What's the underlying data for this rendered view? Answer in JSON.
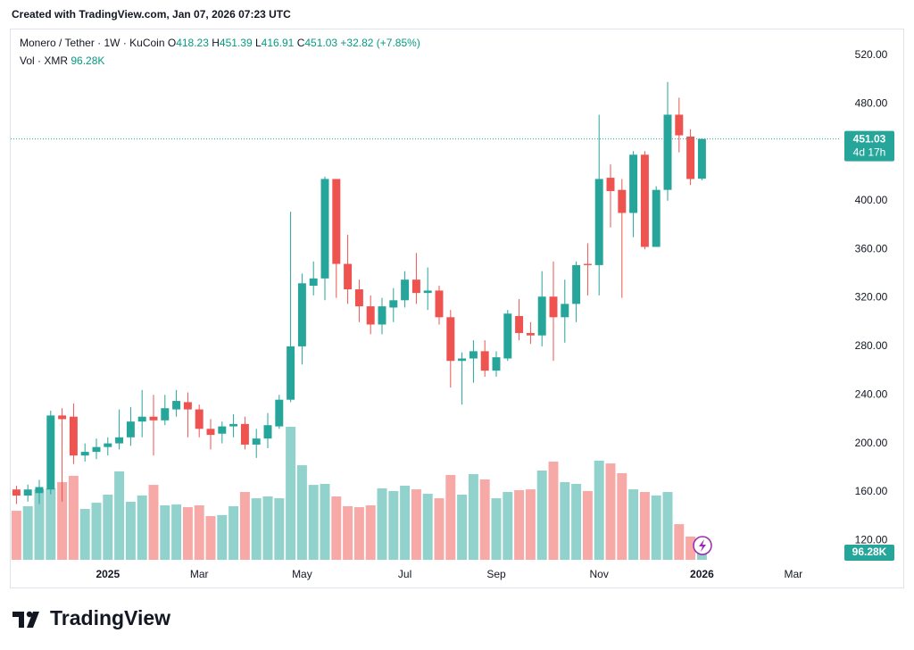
{
  "header": {
    "created": "Created with TradingView.com, Jan 07, 2026 07:23 UTC"
  },
  "chart_data": {
    "type": "candlestick",
    "title": "Monero / Tether · 1W · KuCoin",
    "ohlc_labels": [
      "O",
      "H",
      "L",
      "C"
    ],
    "change": "+32.82 (+7.85%)",
    "volume_title": "Vol · XMR",
    "volume_label": "96.28K",
    "countdown": "4d 17h",
    "open": [
      162,
      157,
      159,
      162,
      223,
      222,
      190,
      193,
      197,
      200,
      205,
      218,
      222,
      219,
      228,
      234,
      228,
      212,
      208,
      214,
      216,
      199,
      204,
      214,
      236,
      280,
      330,
      336,
      418,
      348,
      327,
      313,
      298,
      312,
      318,
      335,
      324,
      326,
      304,
      268,
      270,
      276,
      260,
      270,
      305,
      291,
      289,
      321,
      304,
      315,
      348,
      347,
      419,
      409,
      390,
      438,
      362,
      409,
      471,
      453,
      418.23
    ],
    "high": [
      165,
      166,
      170,
      227,
      229,
      233,
      200,
      204,
      205,
      228,
      230,
      244,
      240,
      240,
      244,
      242,
      232,
      220,
      218,
      224,
      222,
      212,
      225,
      240,
      391,
      340,
      350,
      420,
      418,
      372,
      335,
      322,
      320,
      328,
      342,
      357,
      345,
      330,
      310,
      275,
      285,
      285,
      276,
      310,
      319,
      300,
      342,
      350,
      335,
      350,
      365,
      471,
      430,
      418,
      441,
      441,
      412,
      498,
      485,
      459,
      451.39
    ],
    "low": [
      150,
      152,
      150,
      158,
      152,
      183,
      185,
      187,
      190,
      195,
      198,
      205,
      190,
      215,
      222,
      205,
      205,
      195,
      200,
      205,
      195,
      188,
      196,
      212,
      234,
      265,
      322,
      318,
      320,
      315,
      300,
      290,
      290,
      300,
      312,
      315,
      310,
      298,
      246,
      232,
      250,
      255,
      255,
      268,
      285,
      282,
      280,
      268,
      283,
      300,
      322,
      322,
      378,
      320,
      370,
      360,
      362,
      400,
      440,
      413,
      416.91
    ],
    "close": [
      157,
      162,
      164,
      223,
      220,
      190,
      193,
      197,
      200,
      205,
      218,
      222,
      219,
      229,
      235,
      228,
      212,
      207,
      214,
      216,
      199,
      204,
      215,
      236,
      280,
      332,
      336,
      418,
      348,
      327,
      313,
      298,
      313,
      318,
      335,
      324,
      326,
      304,
      268,
      270,
      276,
      260,
      271,
      307,
      291,
      289,
      321,
      304,
      315,
      347,
      347,
      418,
      408,
      390,
      438,
      362,
      409,
      471,
      454,
      418,
      451.03
    ],
    "volume": [
      352,
      385,
      506,
      513,
      558,
      603,
      365,
      410,
      468,
      635,
      417,
      462,
      538,
      391,
      397,
      378,
      391,
      314,
      321,
      385,
      487,
      442,
      455,
      442,
      955,
      679,
      538,
      545,
      455,
      385,
      378,
      391,
      513,
      494,
      532,
      506,
      474,
      442,
      609,
      468,
      615,
      577,
      442,
      487,
      500,
      506,
      641,
      705,
      558,
      545,
      494,
      712,
      692,
      622,
      506,
      487,
      462,
      487,
      256,
      167,
      96.28
    ],
    "up_color": "#26a69a",
    "down_color": "#ef5350",
    "up_volume_color": "#92d2cc",
    "down_volume_color": "#f7a9a7",
    "xlim": [
      -0.5,
      72
    ],
    "xticks": [
      {
        "value": 8,
        "label": "2025"
      },
      {
        "value": 16,
        "label": "Mar"
      },
      {
        "value": 25,
        "label": "May"
      },
      {
        "value": 34,
        "label": "Jul"
      },
      {
        "value": 42,
        "label": "Sep"
      },
      {
        "value": 51,
        "label": "Nov"
      },
      {
        "value": 60,
        "label": "2026"
      },
      {
        "value": 68,
        "label": "Mar"
      }
    ],
    "ylim": [
      104,
      542
    ],
    "yticks": [
      {
        "value": 120,
        "label": "120.00"
      },
      {
        "value": 160,
        "label": "160.00"
      },
      {
        "value": 200,
        "label": "200.00"
      },
      {
        "value": 240,
        "label": "240.00"
      },
      {
        "value": 280,
        "label": "280.00"
      },
      {
        "value": 320,
        "label": "320.00"
      },
      {
        "value": 360,
        "label": "360.00"
      },
      {
        "value": 400,
        "label": "400.00"
      },
      {
        "value": 480,
        "label": "480.00"
      },
      {
        "value": 520,
        "label": "520.00"
      }
    ],
    "vlim": [
      0,
      1000
    ]
  },
  "footer": {
    "brand": "TradingView"
  }
}
